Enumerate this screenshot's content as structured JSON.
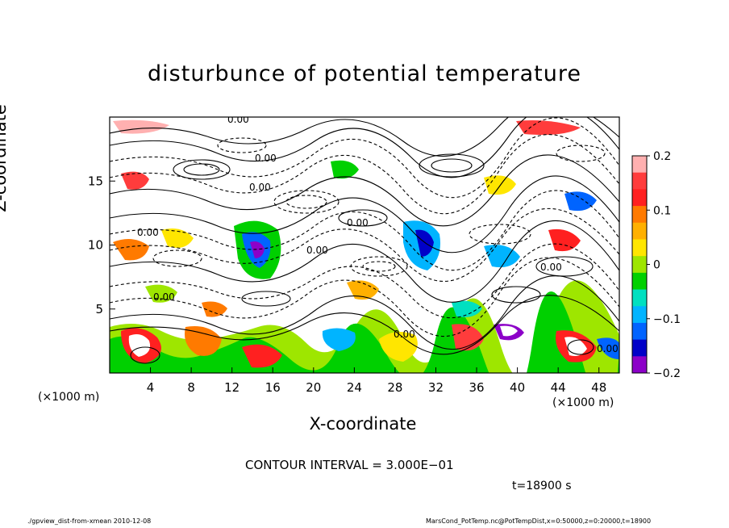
{
  "chart_data": {
    "type": "heatmap",
    "title": "disturbunce of potential temperature",
    "xlabel": "X-coordinate",
    "ylabel": "Z-coordinate",
    "x_unit": "(×1000 m)",
    "x_ticks": [
      4,
      8,
      12,
      16,
      20,
      24,
      28,
      32,
      36,
      40,
      44,
      48
    ],
    "y_ticks": [
      5,
      10,
      15
    ],
    "xlim": [
      0,
      50
    ],
    "ylim": [
      0,
      20
    ],
    "colorbar": {
      "ticks": [
        "0.2",
        "0.1",
        "0",
        "−0.1",
        "−0.2"
      ],
      "range": [
        -0.2,
        0.2
      ],
      "colors": [
        "#ffb0b0",
        "#ff3c3c",
        "#ff2020",
        "#ff7a00",
        "#ffb000",
        "#ffe600",
        "#9ee600",
        "#00d000",
        "#00e0c0",
        "#00b4ff",
        "#0064ff",
        "#0000c8",
        "#8c00c8"
      ]
    },
    "contour_labels": [
      "0.00"
    ],
    "contour_interval_text": "CONTOUR INTERVAL = 3.000E−01",
    "time_text": "t=18900 s"
  },
  "footer": {
    "left": "./gpview_dist-from-xmean  2010-12-08",
    "right": "MarsCond_PotTemp.nc@PotTempDist,x=0:50000,z=0:20000,t=18900"
  }
}
